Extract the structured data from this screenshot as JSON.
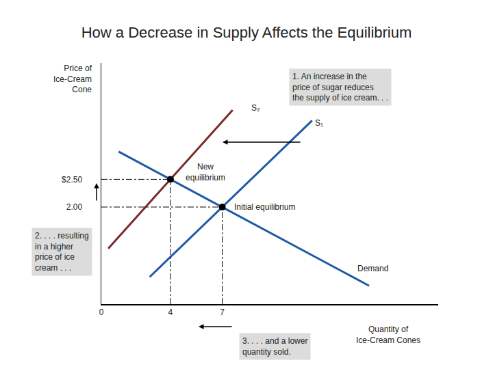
{
  "chart_data": {
    "type": "line",
    "title": "How a Decrease in Supply Affects the Equilibrium",
    "x_label": [
      "Quantity of",
      "Ice-Cream Cones"
    ],
    "y_label": [
      "Price of",
      "Ice-Cream",
      "Cone"
    ],
    "series": [
      {
        "name": "S₂",
        "color": "#7b2b2b",
        "x": [
          0.4,
          7.6
        ],
        "values": [
          1.25,
          3.75
        ]
      },
      {
        "name": "S₁",
        "color": "#1f5aa6",
        "x": [
          2.8,
          12.2
        ],
        "values": [
          0.74,
          3.56
        ]
      },
      {
        "name": "Demand",
        "color": "#1f5aa6",
        "x": [
          1,
          15.5
        ],
        "values": [
          3.0,
          0.58
        ]
      }
    ],
    "points": [
      {
        "label": [
          "New",
          "equilibrium"
        ],
        "x": 4,
        "y": 2.5
      },
      {
        "label": [
          "Initial equilibrium"
        ],
        "x": 7,
        "y": 2
      }
    ],
    "annotations": [
      [
        "1. An increase in the",
        "price of sugar reduces",
        "the supply of ice cream. . ."
      ],
      [
        "2. . . . resulting",
        "in a higher",
        "price of ice",
        "cream . . ."
      ],
      [
        "3. . . . and a lower",
        "quantity sold."
      ]
    ],
    "xlim": [
      0,
      19.5
    ],
    "xticks": [
      0,
      4,
      7
    ],
    "ylim": [
      0.25,
      4.6
    ],
    "yticks": [
      {
        "value": 2,
        "label": "2.00"
      },
      {
        "value": 2.5,
        "label": "$2.50"
      }
    ],
    "grid": false
  }
}
